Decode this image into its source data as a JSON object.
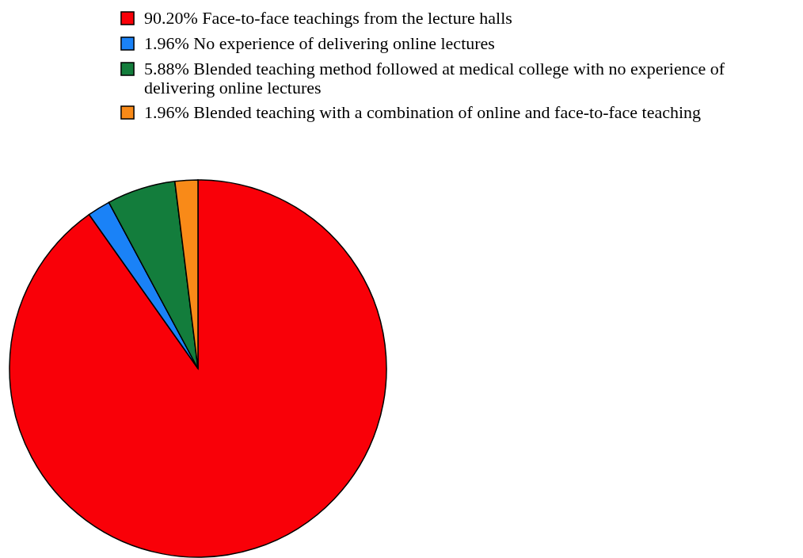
{
  "chart_data": {
    "type": "pie",
    "categories": [
      "Face-to-face teachings from the lecture halls",
      "No experience of delivering online lectures",
      "Blended teaching method followed at medical college with no experience of delivering online lectures",
      "Blended teaching with a combination of online and face-to-face teaching"
    ],
    "values": [
      90.2,
      1.96,
      5.88,
      1.96
    ],
    "value_labels": [
      "90.20%",
      "1.96%",
      "5.88%",
      "1.96%"
    ],
    "colors": [
      "#f90008",
      "#1a82f7",
      "#137d3c",
      "#f98a18"
    ],
    "legend": "top"
  }
}
